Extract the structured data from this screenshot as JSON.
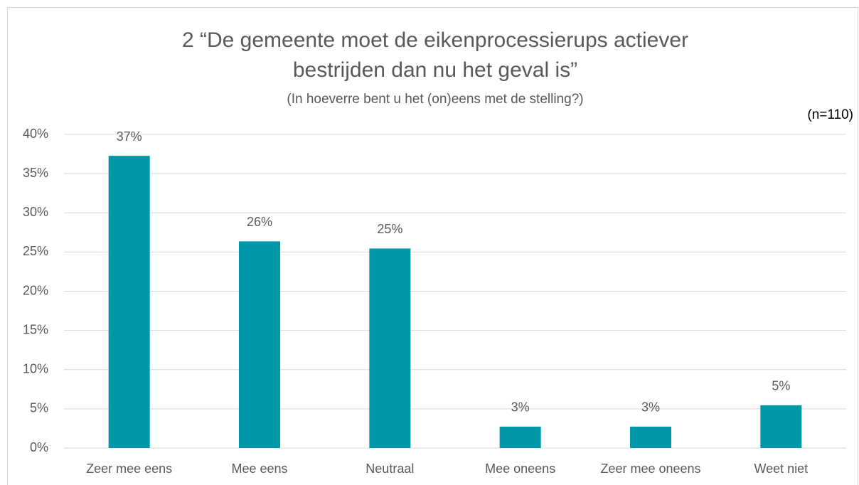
{
  "chart_data": {
    "type": "bar",
    "title": [
      "2 “De gemeente moet de eikenprocessierups actiever",
      "bestrijden dan nu het geval is”"
    ],
    "subtitle": "(In hoeverre bent u het (on)eens met de stelling?)",
    "annotation": "(n=110)",
    "categories": [
      "Zeer mee eens",
      "Mee eens",
      "Neutraal",
      "Mee oneens",
      "Zeer mee oneens",
      "Weet niet"
    ],
    "values": [
      37.27,
      26.36,
      25.45,
      2.73,
      2.73,
      5.45
    ],
    "value_labels": [
      "37%",
      "26%",
      "25%",
      "3%",
      "3%",
      "5%"
    ],
    "color": "#0097a7",
    "ylim": [
      0,
      40
    ],
    "yticks": [
      {
        "value": 0,
        "label": "0%"
      },
      {
        "value": 5,
        "label": "5%"
      },
      {
        "value": 10,
        "label": "10%"
      },
      {
        "value": 15,
        "label": "15%"
      },
      {
        "value": 20,
        "label": "20%"
      },
      {
        "value": 25,
        "label": "25%"
      },
      {
        "value": 30,
        "label": "30%"
      },
      {
        "value": 35,
        "label": "35%"
      },
      {
        "value": 40,
        "label": "40%"
      }
    ],
    "grid": true
  }
}
